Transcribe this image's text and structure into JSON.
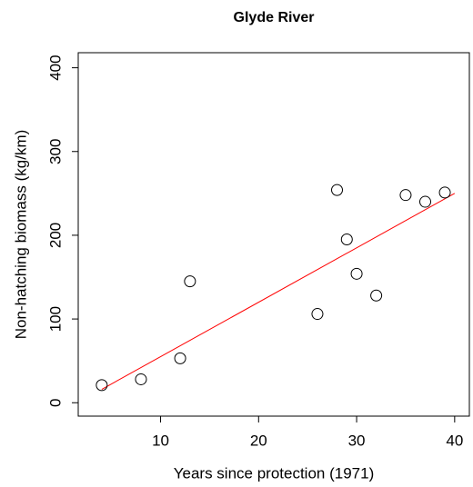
{
  "chart_data": {
    "type": "scatter",
    "title": "Glyde River",
    "x_label": "Years since protection (1971)",
    "y_label": "Non-hatching biomass (kg/km)",
    "x": [
      4,
      8,
      12,
      13,
      26,
      28,
      29,
      30,
      32,
      35,
      37,
      39
    ],
    "y": [
      21,
      28,
      53,
      145,
      106,
      254,
      195,
      154,
      128,
      248,
      240,
      251
    ],
    "color": "#000000",
    "fit_line": {
      "x": [
        4,
        40
      ],
      "y": [
        16,
        250
      ],
      "color": "#ff0000"
    },
    "xlim": [
      1.6,
      41.5
    ],
    "ylim": [
      -16,
      418
    ],
    "xticks": [
      10,
      20,
      30,
      40
    ],
    "yticks": [
      0,
      100,
      200,
      300,
      400
    ]
  }
}
